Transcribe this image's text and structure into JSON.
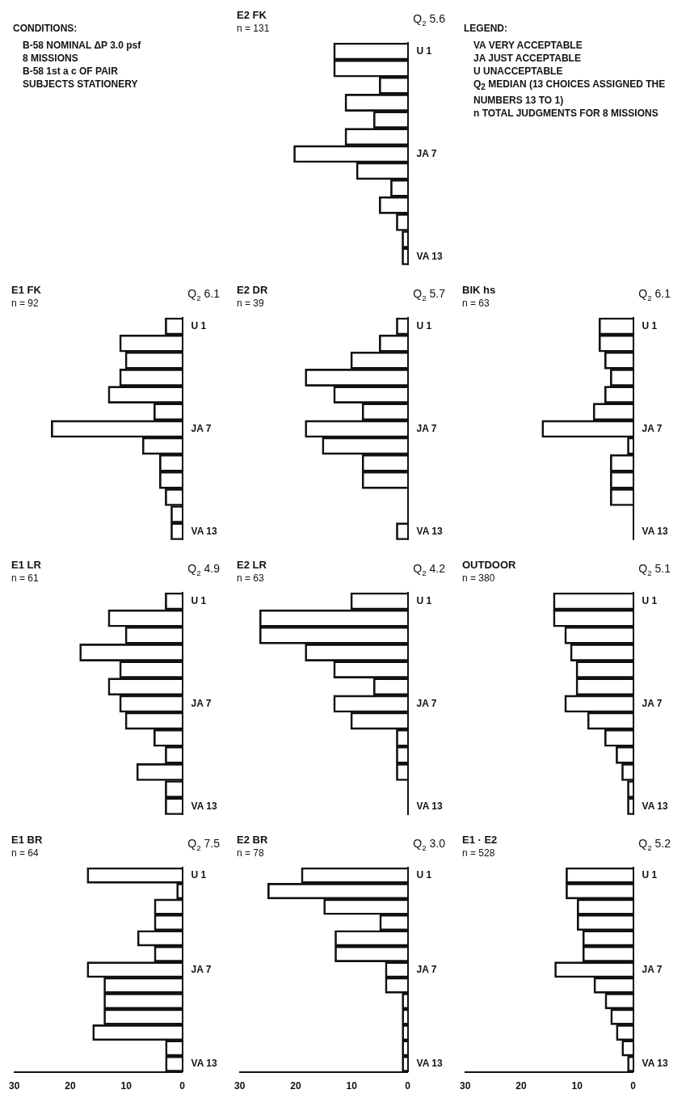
{
  "chart_data": [
    {
      "type": "bar",
      "orientation": "horizontal",
      "title": "E1 BR",
      "subtitle": "n = 64",
      "categories": [
        "U 1",
        null,
        null,
        null,
        null,
        null,
        "JA 7",
        null,
        null,
        null,
        null,
        null,
        "VA 13"
      ],
      "values": [
        17,
        1,
        5,
        5,
        8,
        5,
        17,
        14,
        14,
        14,
        16,
        3,
        3
      ],
      "color": "#111111",
      "xlim": [
        30,
        0
      ],
      "xticks": [
        30,
        20,
        10,
        0
      ],
      "annotations": [
        "Q$_{2}$ 7.5"
      ]
    },
    {
      "type": "bar",
      "orientation": "horizontal",
      "title": "E1 LR",
      "subtitle": "n = 61",
      "categories": [
        "U 1",
        null,
        null,
        null,
        null,
        null,
        "JA 7",
        null,
        null,
        null,
        null,
        null,
        "VA 13"
      ],
      "values": [
        3,
        13,
        10,
        18,
        11,
        13,
        11,
        10,
        5,
        3,
        8,
        3,
        3
      ],
      "color": "#111111",
      "xlim": [
        30,
        0
      ],
      "xticks": [
        30,
        20,
        10,
        0
      ],
      "tick_labels": "y",
      "annotations": [
        "Q$_{2}$ 4.9"
      ]
    },
    {
      "type": "bar",
      "orientation": "horizontal",
      "title": "E1 FK",
      "subtitle": "n = 92",
      "categories": [
        "U 1",
        null,
        null,
        null,
        null,
        null,
        "JA 7",
        null,
        null,
        null,
        null,
        null,
        "VA 13"
      ],
      "values": [
        3,
        11,
        10,
        11,
        13,
        5,
        23,
        7,
        4,
        4,
        3,
        2,
        2
      ],
      "color": "#111111",
      "xlim": [
        30,
        0
      ],
      "xticks": [
        30,
        20,
        10,
        0
      ],
      "tick_labels": "y",
      "annotations": [
        "Q$_{2}$ 6.1"
      ]
    },
    {
      "type": "other",
      "title": "CONDITIONS:",
      "annotations": [
        "B-58 NOMINAL ΔP 3.0 psf",
        "8 MISSIONS",
        "B-58 1st a c OF PAIR",
        "SUBJECTS STATIONERY"
      ]
    },
    {
      "type": "bar",
      "orientation": "horizontal",
      "title": "E2 BR",
      "subtitle": "n = 78",
      "categories": [
        "U 1",
        null,
        null,
        null,
        null,
        null,
        "JA 7",
        null,
        null,
        null,
        null,
        null,
        "VA 13"
      ],
      "values": [
        19,
        25,
        15,
        5,
        13,
        13,
        4,
        4,
        1,
        1,
        1,
        1,
        1
      ],
      "color": "#111111",
      "xlim": [
        30,
        0
      ],
      "xticks": [
        30,
        20,
        10,
        0
      ],
      "annotations": [
        "Q$_{2}$ 3.0"
      ]
    },
    {
      "type": "bar",
      "orientation": "horizontal",
      "title": "E2 LR",
      "subtitle": "n = 63",
      "categories": [
        "U 1",
        null,
        null,
        null,
        null,
        null,
        "JA 7",
        null,
        null,
        null,
        null,
        null,
        "VA 13"
      ],
      "values": [
        10,
        26,
        26,
        18,
        13,
        6,
        13,
        10,
        2,
        2,
        2,
        0,
        0
      ],
      "color": "#111111",
      "xlim": [
        30,
        0
      ],
      "xticks": [
        30,
        20,
        10,
        0
      ],
      "tick_labels": "y",
      "annotations": [
        "Q$_{2}$ 4.2"
      ]
    },
    {
      "type": "bar",
      "orientation": "horizontal",
      "title": "E2 DR",
      "subtitle": "n = 39",
      "categories": [
        "U 1",
        null,
        null,
        null,
        null,
        null,
        "JA 7",
        null,
        null,
        null,
        null,
        null,
        "VA 13"
      ],
      "values": [
        2,
        5,
        10,
        18,
        13,
        8,
        18,
        15,
        8,
        8,
        0,
        0,
        2
      ],
      "color": "#111111",
      "xlim": [
        30,
        0
      ],
      "xticks": [
        30,
        20,
        10,
        0
      ],
      "tick_labels": "y",
      "annotations": [
        "Q$_{2}$ 5.7"
      ]
    },
    {
      "type": "bar",
      "orientation": "horizontal",
      "title": "E2 FK",
      "subtitle": "n = 131",
      "categories": [
        "U 1",
        null,
        null,
        null,
        null,
        null,
        "JA 7",
        null,
        null,
        null,
        null,
        null,
        "VA 13"
      ],
      "values": [
        13,
        13,
        5,
        11,
        6,
        11,
        20,
        9,
        3,
        5,
        2,
        1,
        1
      ],
      "color": "#111111",
      "xlim": [
        30,
        0
      ],
      "xticks": [
        30,
        20,
        10,
        0
      ],
      "tick_labels": "y",
      "annotations": [
        "Q$_{2}$ 5.6"
      ]
    },
    {
      "type": "bar",
      "orientation": "horizontal",
      "title": "E1 · E2",
      "subtitle": "n = 528",
      "categories": [
        "U 1",
        null,
        null,
        null,
        null,
        null,
        "JA 7",
        null,
        null,
        null,
        null,
        null,
        "VA 13"
      ],
      "values": [
        12,
        12,
        10,
        10,
        9,
        9,
        14,
        7,
        5,
        4,
        3,
        2,
        1
      ],
      "color": "#111111",
      "xlim": [
        30,
        0
      ],
      "xticks": [
        30,
        20,
        10,
        0
      ],
      "annotations": [
        "Q$_{2}$ 5.2"
      ]
    },
    {
      "type": "bar",
      "orientation": "horizontal",
      "title": "OUTDOOR",
      "subtitle": "n = 380",
      "categories": [
        "U 1",
        null,
        null,
        null,
        null,
        null,
        "JA 7",
        null,
        null,
        null,
        null,
        null,
        "VA 13"
      ],
      "values": [
        14,
        14,
        12,
        11,
        10,
        10,
        12,
        8,
        5,
        3,
        2,
        1,
        1
      ],
      "color": "#111111",
      "xlim": [
        30,
        0
      ],
      "xticks": [
        30,
        20,
        10,
        0
      ],
      "tick_labels": "y",
      "annotations": [
        "Q$_{2}$ 5.1"
      ]
    },
    {
      "type": "bar",
      "orientation": "horizontal",
      "title": "BIK hs",
      "subtitle": "n = 63",
      "categories": [
        "U 1",
        null,
        null,
        null,
        null,
        null,
        "JA 7",
        null,
        null,
        null,
        null,
        null,
        "VA 13"
      ],
      "values": [
        6,
        6,
        5,
        4,
        5,
        7,
        16,
        1,
        4,
        4,
        4,
        0,
        0
      ],
      "color": "#111111",
      "xlim": [
        30,
        0
      ],
      "xticks": [
        30,
        20,
        10,
        0
      ],
      "tick_labels": "y",
      "annotations": [
        "Q$_{2}$ 6.1"
      ]
    },
    {
      "type": "other",
      "title": "LEGEND:",
      "annotations": [
        "VA VERY ACCEPTABLE",
        "JA JUST ACCEPTABLE",
        "U UNACCEPTABLE",
        "Q$_{2}$ MEDIAN (13 CHOICES ASSIGNED THE NUMBERS 13 TO 1)",
        "n TOTAL JUDGMENTS FOR 8 MISSIONS"
      ]
    }
  ]
}
